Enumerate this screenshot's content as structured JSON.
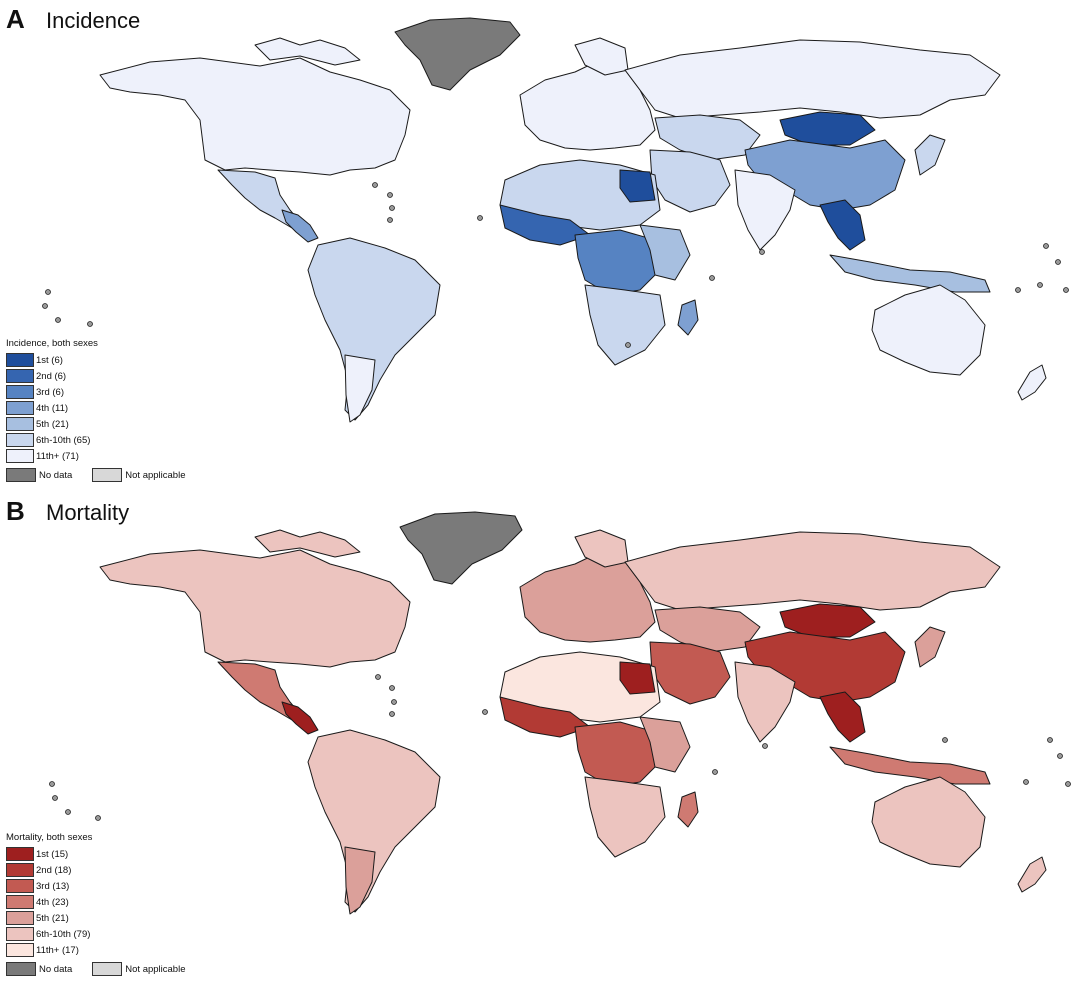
{
  "panel_a": {
    "letter": "A",
    "title": "Incidence",
    "legend_title": "Incidence, both sexes",
    "bins": [
      {
        "label": "1st (6)",
        "color": "#1f4e9c"
      },
      {
        "label": "2nd (6)",
        "color": "#3565b0"
      },
      {
        "label": "3rd (6)",
        "color": "#5683c2"
      },
      {
        "label": "4th (11)",
        "color": "#7ea0d1"
      },
      {
        "label": "5th (21)",
        "color": "#a7bfe0"
      },
      {
        "label": "6th-10th (65)",
        "color": "#c9d7ee"
      },
      {
        "label": "11th+ (71)",
        "color": "#eef1fb"
      }
    ],
    "no_data_label": "No data",
    "not_applicable_label": "Not applicable",
    "no_data_color": "#7a7a7a",
    "not_applicable_color": "#d8d8d8"
  },
  "panel_b": {
    "letter": "B",
    "title": "Mortality",
    "legend_title": "Mortality, both sexes",
    "bins": [
      {
        "label": "1st (15)",
        "color": "#9e1f1f"
      },
      {
        "label": "2nd (18)",
        "color": "#b23a34"
      },
      {
        "label": "3rd (13)",
        "color": "#c25a52"
      },
      {
        "label": "4th (23)",
        "color": "#cf7a72"
      },
      {
        "label": "5th (21)",
        "color": "#dba09a"
      },
      {
        "label": "6th-10th (79)",
        "color": "#ecc4bf"
      },
      {
        "label": "11th+ (17)",
        "color": "#fbe6df"
      }
    ],
    "no_data_label": "No data",
    "not_applicable_label": "Not applicable",
    "no_data_color": "#7a7a7a",
    "not_applicable_color": "#d8d8d8"
  }
}
